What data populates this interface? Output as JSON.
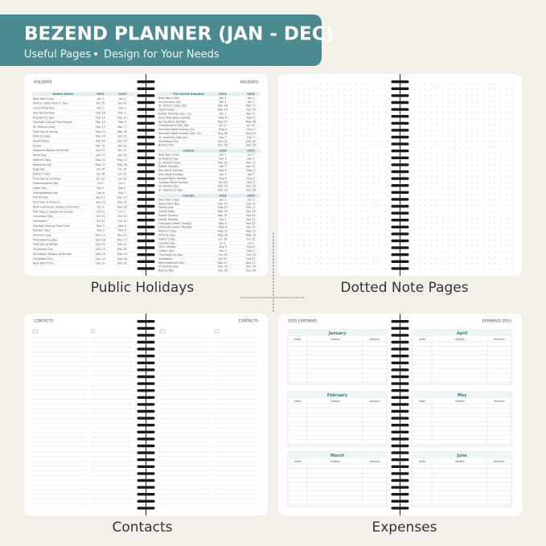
{
  "banner": {
    "title": "BEZEND PLANNER (JAN - DEC)",
    "subtitle_1": "Useful Pages",
    "subtitle_2": "Design for Your Needs"
  },
  "captions": [
    "Public Holidays",
    "Dotted Note Pages",
    "Contacts",
    "Expenses"
  ],
  "holidays": {
    "page_title_left": "HOLIDAYS",
    "page_title_right": "HOLIDAYS",
    "tables": [
      {
        "country": "United States",
        "years": [
          "2024",
          "2025"
        ],
        "rows": [
          [
            "New Year's Day",
            "Jan 1",
            "Jan 1"
          ],
          [
            "Martin Luther King Jr. Day",
            "Jan 15",
            "Jan 20"
          ],
          [
            "Groundhog Day",
            "Feb 2",
            "Feb 2"
          ],
          [
            "Ash Wednesday",
            "Feb 14",
            "Mar 5"
          ],
          [
            "President's Day",
            "Feb 19",
            "Feb 17"
          ],
          [
            "Daylight Saving Time Begins",
            "Mar 10",
            "Mar 9"
          ],
          [
            "St. Patrick's Day",
            "Mar 17",
            "Mar 17"
          ],
          [
            "First Day of Spring",
            "Mar 19",
            "Mar 20"
          ],
          [
            "Palm Sunday",
            "Mar 24",
            "Apr 13"
          ],
          [
            "Good Friday",
            "Mar 29",
            "Apr 18"
          ],
          [
            "Easter",
            "Mar 31",
            "Apr 20"
          ],
          [
            "Passover Begins at Sunset",
            "Apr 22",
            "Apr 12"
          ],
          [
            "Earth Day",
            "Apr 22",
            "Apr 22"
          ],
          [
            "Mother's Day",
            "May 12",
            "May 11"
          ],
          [
            "Memorial Day",
            "May 27",
            "May 26"
          ],
          [
            "Flag Day",
            "Jun 14",
            "Jun 14"
          ],
          [
            "Father's Day",
            "Jun 16",
            "Jun 15"
          ],
          [
            "First Day of Summer",
            "Jun 20",
            "Jun 20"
          ],
          [
            "Independence Day",
            "Jul 4",
            "Jul 4"
          ],
          [
            "Labor Day",
            "Sep 2",
            "Sep 1"
          ],
          [
            "Grandparents Day",
            "Sep 8",
            "Sep 7"
          ],
          [
            "Patriot Day",
            "Sep 11",
            "Sep 11"
          ],
          [
            "First Day of Autumn",
            "Sep 22",
            "Sep 22"
          ],
          [
            "Rosh Hashanah, Begins at Sunset",
            "Oct 2",
            "Sep 22"
          ],
          [
            "Yom Kippur, Begins at Sunset",
            "Oct 11",
            "Oct 1"
          ],
          [
            "Columbus Day",
            "Oct 14",
            "Oct 13"
          ],
          [
            "Halloween",
            "Oct 31",
            "Oct 31"
          ],
          [
            "Daylight Saving Time Ends",
            "Nov 3",
            "Nov 2"
          ],
          [
            "Election Day",
            "Nov 5",
            "Nov 4"
          ],
          [
            "Veterans Day",
            "Nov 11",
            "Nov 11"
          ],
          [
            "Thanksgiving Day",
            "Nov 28",
            "Nov 27"
          ],
          [
            "First Day of Winter",
            "Dec 21",
            "Dec 21"
          ],
          [
            "Christmas Day",
            "Dec 25",
            "Dec 25"
          ],
          [
            "Hanukkah, Begins at Sunset",
            "Dec 25",
            "Dec 14"
          ],
          [
            "Christmas Eve",
            "Dec 24",
            "Dec 24"
          ],
          [
            "New Year's Eve",
            "Dec 31",
            "Dec 31"
          ]
        ]
      },
      {
        "country": "The United Kingdom",
        "years": [
          "2024",
          "2025"
        ],
        "rows": [
          [
            "New Year's Day",
            "Jan 1",
            "Jan 1"
          ],
          [
            "2nd January (Sc)",
            "Jan 2",
            "Jan 2"
          ],
          [
            "St. Patrick's Day (NI)",
            "Mar 18",
            "Mar 17"
          ],
          [
            "Good Friday",
            "Mar 29",
            "Apr 18"
          ],
          [
            "Easter Monday (exc. Sc)",
            "Apr 1",
            "Apr 21"
          ],
          [
            "Early May Bank Holiday",
            "May 6",
            "May 5"
          ],
          [
            "Spring Bank Holiday",
            "May 27",
            "May 26"
          ],
          [
            "Orangemen's Day (NI)",
            "Jul 12",
            "Jul 14"
          ],
          [
            "Summer Bank Holiday (Sc)",
            "Aug 5",
            "Aug 4"
          ],
          [
            "Summer Bank Holiday (exc. Sc)",
            "Aug 26",
            "Aug 25"
          ],
          [
            "St. Andrew's Day (Sc)",
            "Dec 2",
            "Dec 1"
          ],
          [
            "Christmas Day",
            "Dec 25",
            "Dec 25"
          ],
          [
            "Boxing Day",
            "Dec 26",
            "Dec 26"
          ]
        ]
      },
      {
        "country": "Ireland",
        "years": [
          "2024",
          "2025"
        ],
        "rows": [
          [
            "New Year's Day",
            "Jan 1",
            "Jan 1"
          ],
          [
            "St Brigid's Day",
            "Feb 5",
            "Feb 3"
          ],
          [
            "St. Patrick's Day",
            "Mar 18",
            "Mar 17"
          ],
          [
            "Easter Monday",
            "Apr 1",
            "Apr 21"
          ],
          [
            "May Bank Holiday",
            "May 6",
            "May 5"
          ],
          [
            "June Bank Holiday",
            "Jun 3",
            "Jun 2"
          ],
          [
            "August Bank Holiday",
            "Aug 5",
            "Aug 4"
          ],
          [
            "October Bank Holiday",
            "Oct 28",
            "Oct 27"
          ],
          [
            "Christmas Day",
            "Dec 25",
            "Dec 25"
          ],
          [
            "St. Stephen's Day",
            "Dec 26",
            "Dec 26"
          ]
        ]
      },
      {
        "country": "Canada",
        "years": [
          "2024",
          "2025"
        ],
        "rows": [
          [
            "New Year's Day",
            "Jan 1",
            "Jan 1"
          ],
          [
            "Valentine's Day",
            "Feb 14",
            "Feb 14"
          ],
          [
            "Family Day",
            "Feb 19",
            "Feb 17"
          ],
          [
            "Good Friday",
            "Mar 29",
            "Apr 18"
          ],
          [
            "Easter Sunday",
            "Mar 31",
            "Apr 20"
          ],
          [
            "Easter Monday",
            "Apr 1",
            "Apr 21"
          ],
          [
            "Orthodox Easter Sunday",
            "May 5",
            "Apr 20"
          ],
          [
            "Orthodox Easter Monday",
            "May 6",
            "Apr 21"
          ],
          [
            "Mother's Day",
            "May 12",
            "May 11"
          ],
          [
            "Victoria Day",
            "May 20",
            "May 19"
          ],
          [
            "Father's Day",
            "Jun 16",
            "Jun 15"
          ],
          [
            "Canada Day",
            "Jul 1",
            "Jul 1"
          ],
          [
            "Civic Holiday",
            "Aug 5",
            "Aug 4"
          ],
          [
            "Labour Day",
            "Sep 2",
            "Sep 1"
          ],
          [
            "Thanksgiving Day",
            "Oct 14",
            "Oct 13"
          ],
          [
            "Halloween",
            "Oct 31",
            "Oct 31"
          ],
          [
            "Remembrance Day",
            "Nov 11",
            "Nov 11"
          ],
          [
            "Christmas Day",
            "Dec 25",
            "Dec 25"
          ],
          [
            "Boxing Day",
            "Dec 26",
            "Dec 26"
          ]
        ]
      }
    ]
  },
  "contacts": {
    "page_title_left": "CONTACTS",
    "page_title_right": "CONTACTS"
  },
  "expenses": {
    "page_title_left": "2025 EXPENSES",
    "page_title_right": "EXPENSES 2025",
    "columns": [
      "Date",
      "Details",
      "Amount"
    ],
    "months": [
      "January",
      "February",
      "March",
      "April",
      "May",
      "June"
    ]
  }
}
